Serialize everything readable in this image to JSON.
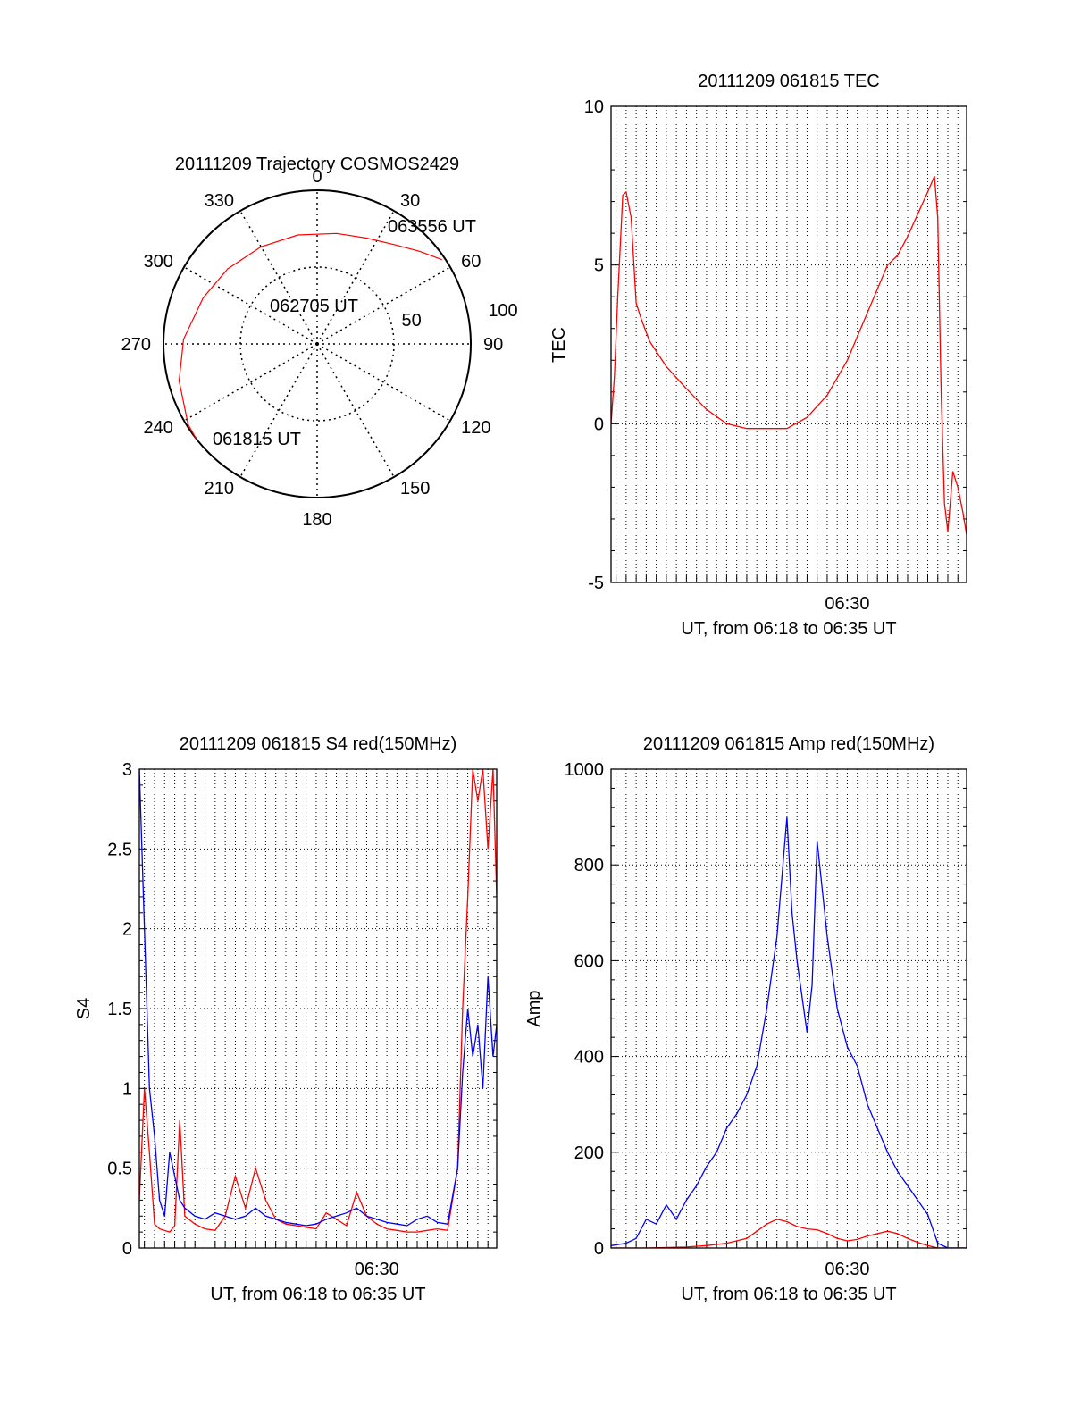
{
  "chart_data": [
    {
      "type": "polar",
      "title": "20111209 Trajectory COSMOS2429",
      "angle_labels": [
        "0",
        "30",
        "60",
        "90",
        "120",
        "150",
        "180",
        "210",
        "240",
        "270",
        "300",
        "330"
      ],
      "angles": [
        0,
        30,
        60,
        90,
        120,
        150,
        180,
        210,
        240,
        270,
        300,
        330
      ],
      "radial_labels": [
        "50",
        "100"
      ],
      "radial_values": [
        50,
        100
      ],
      "rlim": [
        0,
        100
      ],
      "series": [
        {
          "color": "#ff0000",
          "azimuth": [
            56,
            48,
            38,
            25,
            10,
            350,
            330,
            310,
            292,
            272,
            255,
            238,
            232
          ],
          "radius": [
            98,
            90,
            82,
            76,
            73,
            72,
            73,
            76,
            80,
            87,
            93,
            99,
            100
          ]
        }
      ],
      "annotations": [
        {
          "text": "063556 UT",
          "azimuth": 54,
          "radius": 104
        },
        {
          "text": "062705 UT",
          "azimuth": 340,
          "radius": 38
        },
        {
          "text": "061815 UT",
          "azimuth": 228,
          "radius": 92
        }
      ]
    },
    {
      "type": "line",
      "title": "20111209 061815 TEC",
      "xlabel": "UT, from 06:18 to 06:35 UT",
      "ylabel": "TEC",
      "xlim": [
        "06:18:15",
        "06:35:56"
      ],
      "ylim": [
        -5,
        10
      ],
      "yticks": [
        -5,
        0,
        5,
        10
      ],
      "xtick_labels": [
        {
          "at": "06:30:00",
          "label": "06:30"
        }
      ],
      "grid": true,
      "series": [
        {
          "color": "#ff0000",
          "x": [
            "06:18:15",
            "06:18:25",
            "06:18:35",
            "06:18:50",
            "06:19:00",
            "06:19:15",
            "06:19:30",
            "06:19:45",
            "06:20:10",
            "06:21:00",
            "06:22:00",
            "06:23:00",
            "06:24:00",
            "06:25:00",
            "06:26:00",
            "06:27:00",
            "06:28:00",
            "06:29:00",
            "06:30:00",
            "06:31:00",
            "06:32:00",
            "06:32:30",
            "06:33:00",
            "06:33:30",
            "06:34:00",
            "06:34:20",
            "06:34:30",
            "06:34:40",
            "06:34:50",
            "06:35:00",
            "06:35:15",
            "06:35:30",
            "06:35:45",
            "06:35:56"
          ],
          "y": [
            0,
            1.5,
            4.0,
            7.2,
            7.3,
            6.5,
            3.8,
            3.3,
            2.6,
            1.8,
            1.1,
            0.45,
            0.0,
            -0.15,
            -0.15,
            -0.15,
            0.2,
            0.9,
            2.0,
            3.5,
            5.0,
            5.3,
            5.9,
            6.6,
            7.3,
            7.8,
            6.5,
            1.0,
            -2.5,
            -3.4,
            -1.5,
            -2.0,
            -2.8,
            -3.5
          ]
        }
      ]
    },
    {
      "type": "line",
      "title": "20111209 061815 S4 red(150MHz)",
      "xlabel": "UT, from 06:18 to 06:35 UT",
      "ylabel": "S4",
      "xlim": [
        "06:18:15",
        "06:35:56"
      ],
      "ylim": [
        0,
        3
      ],
      "yticks": [
        0,
        0.5,
        1,
        1.5,
        2,
        2.5,
        3
      ],
      "xtick_labels": [
        {
          "at": "06:30:00",
          "label": "06:30"
        }
      ],
      "grid": true,
      "series": [
        {
          "color": "#ff0000",
          "x": [
            "06:18:15",
            "06:18:30",
            "06:18:45",
            "06:19:00",
            "06:19:15",
            "06:19:45",
            "06:20:00",
            "06:20:15",
            "06:20:30",
            "06:21:00",
            "06:21:30",
            "06:22:00",
            "06:22:30",
            "06:23:00",
            "06:23:30",
            "06:24:00",
            "06:24:30",
            "06:25:00",
            "06:25:30",
            "06:26:00",
            "06:26:30",
            "06:27:00",
            "06:27:30",
            "06:28:00",
            "06:28:30",
            "06:29:00",
            "06:29:30",
            "06:30:00",
            "06:30:30",
            "06:31:00",
            "06:31:30",
            "06:32:00",
            "06:32:30",
            "06:33:00",
            "06:33:30",
            "06:34:00",
            "06:34:15",
            "06:34:30",
            "06:34:45",
            "06:35:00",
            "06:35:15",
            "06:35:30",
            "06:35:45",
            "06:35:56"
          ],
          "y": [
            0.3,
            1.0,
            0.6,
            0.15,
            0.12,
            0.1,
            0.14,
            0.8,
            0.2,
            0.15,
            0.12,
            0.11,
            0.2,
            0.45,
            0.25,
            0.5,
            0.3,
            0.18,
            0.15,
            0.14,
            0.13,
            0.12,
            0.22,
            0.18,
            0.14,
            0.35,
            0.2,
            0.15,
            0.12,
            0.11,
            0.1,
            0.1,
            0.11,
            0.12,
            0.11,
            0.5,
            1.5,
            2.2,
            3.0,
            2.8,
            3.0,
            2.5,
            3.0,
            2.2
          ]
        },
        {
          "color": "#0000ff",
          "x": [
            "06:18:15",
            "06:18:30",
            "06:18:45",
            "06:19:00",
            "06:19:15",
            "06:19:30",
            "06:19:45",
            "06:20:00",
            "06:20:15",
            "06:20:30",
            "06:21:00",
            "06:21:30",
            "06:22:00",
            "06:22:30",
            "06:23:00",
            "06:23:30",
            "06:24:00",
            "06:24:30",
            "06:25:00",
            "06:25:30",
            "06:26:00",
            "06:26:30",
            "06:27:00",
            "06:27:30",
            "06:28:00",
            "06:28:30",
            "06:29:00",
            "06:29:30",
            "06:30:00",
            "06:30:30",
            "06:31:00",
            "06:31:30",
            "06:32:00",
            "06:32:30",
            "06:33:00",
            "06:33:30",
            "06:34:00",
            "06:34:15",
            "06:34:30",
            "06:34:45",
            "06:35:00",
            "06:35:15",
            "06:35:30",
            "06:35:45",
            "06:35:56"
          ],
          "y": [
            3.0,
            2.0,
            1.0,
            0.7,
            0.3,
            0.2,
            0.6,
            0.45,
            0.3,
            0.25,
            0.2,
            0.18,
            0.22,
            0.2,
            0.18,
            0.2,
            0.25,
            0.2,
            0.18,
            0.16,
            0.15,
            0.14,
            0.15,
            0.18,
            0.2,
            0.22,
            0.25,
            0.2,
            0.18,
            0.16,
            0.15,
            0.14,
            0.18,
            0.2,
            0.16,
            0.15,
            0.5,
            1.1,
            1.5,
            1.2,
            1.4,
            1.0,
            1.7,
            1.2,
            1.4
          ]
        }
      ]
    },
    {
      "type": "line",
      "title": "20111209 061815 Amp red(150MHz)",
      "xlabel": "UT, from 06:18 to 06:35 UT",
      "ylabel": "Amp",
      "xlim": [
        "06:18:15",
        "06:35:56"
      ],
      "ylim": [
        0,
        1000
      ],
      "yticks": [
        0,
        200,
        400,
        600,
        800,
        1000
      ],
      "xtick_labels": [
        {
          "at": "06:30:00",
          "label": "06:30"
        }
      ],
      "grid": true,
      "series": [
        {
          "color": "#ff0000",
          "x": [
            "06:18:15",
            "06:20:00",
            "06:22:00",
            "06:23:00",
            "06:24:00",
            "06:25:00",
            "06:25:30",
            "06:26:00",
            "06:26:30",
            "06:27:00",
            "06:27:30",
            "06:28:00",
            "06:28:30",
            "06:29:00",
            "06:29:30",
            "06:30:00",
            "06:30:30",
            "06:31:00",
            "06:31:30",
            "06:32:00",
            "06:32:30",
            "06:33:00",
            "06:33:30",
            "06:34:00",
            "06:34:30",
            "06:35:00",
            "06:35:56"
          ],
          "y": [
            0,
            0,
            2,
            5,
            10,
            20,
            35,
            50,
            60,
            55,
            45,
            40,
            38,
            30,
            20,
            15,
            18,
            25,
            30,
            35,
            30,
            20,
            12,
            5,
            0,
            0,
            0
          ]
        },
        {
          "color": "#0000ff",
          "x": [
            "06:18:15",
            "06:19:00",
            "06:19:30",
            "06:20:00",
            "06:20:30",
            "06:21:00",
            "06:21:30",
            "06:22:00",
            "06:22:30",
            "06:23:00",
            "06:23:30",
            "06:24:00",
            "06:24:30",
            "06:25:00",
            "06:25:30",
            "06:26:00",
            "06:26:30",
            "06:27:00",
            "06:27:15",
            "06:27:30",
            "06:28:00",
            "06:28:15",
            "06:28:30",
            "06:29:00",
            "06:29:30",
            "06:30:00",
            "06:30:30",
            "06:31:00",
            "06:31:30",
            "06:32:00",
            "06:32:30",
            "06:33:00",
            "06:33:30",
            "06:34:00",
            "06:34:30",
            "06:35:00",
            "06:35:56"
          ],
          "y": [
            5,
            10,
            20,
            60,
            50,
            90,
            60,
            100,
            130,
            170,
            200,
            250,
            280,
            320,
            380,
            500,
            650,
            900,
            700,
            600,
            450,
            550,
            850,
            650,
            500,
            420,
            380,
            300,
            250,
            200,
            160,
            130,
            100,
            70,
            10,
            0,
            0
          ]
        }
      ]
    }
  ]
}
